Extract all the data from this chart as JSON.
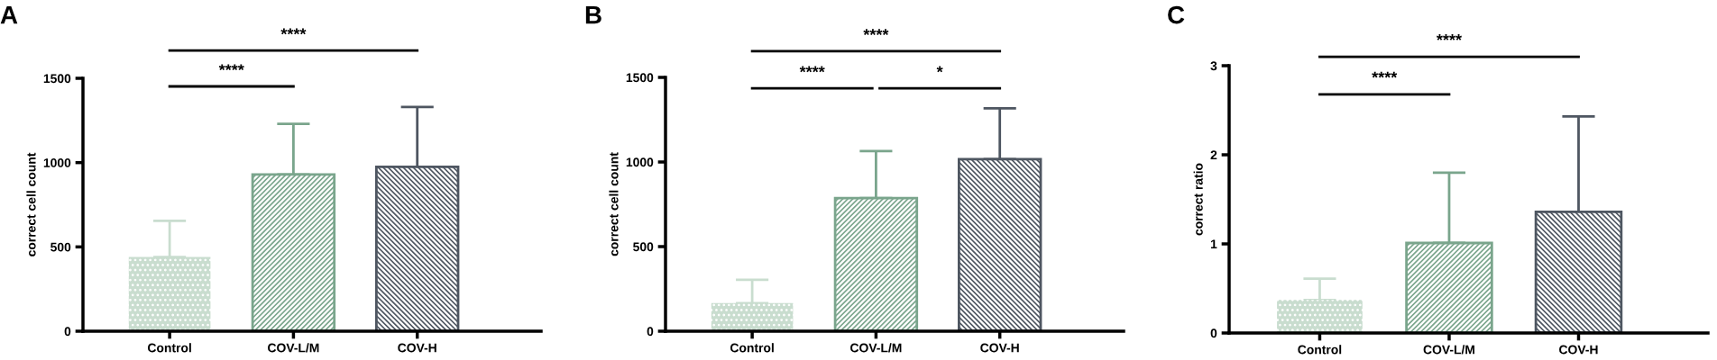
{
  "chart_data": [
    {
      "type": "bar",
      "title": "A",
      "ylabel": "correct cell count",
      "categories": [
        "Control",
        "COV-L/M",
        "COV-H"
      ],
      "values": [
        440,
        930,
        975
      ],
      "errors": [
        [
          440,
          655
        ],
        [
          930,
          1230
        ],
        [
          975,
          1330
        ]
      ],
      "colors": [
        "#c9ddcf",
        "#7aa58c",
        "#4e5661"
      ],
      "ylim": [
        0,
        1500
      ],
      "yticks": [
        0,
        500,
        1000,
        1500
      ],
      "grid": false,
      "annotations": [
        "****",
        "****"
      ]
    },
    {
      "type": "bar",
      "title": "B",
      "ylabel": "correct cell count",
      "categories": [
        "Control",
        "COV-L/M",
        "COV-H"
      ],
      "values": [
        166,
        787,
        1017
      ],
      "errors": [
        [
          166,
          304
        ],
        [
          787,
          1064
        ],
        [
          1017,
          1317
        ]
      ],
      "colors": [
        "#c9ddcf",
        "#7aa58c",
        "#4e5661"
      ],
      "ylim": [
        0,
        1500
      ],
      "yticks": [
        0,
        500,
        1000,
        1500
      ],
      "grid": false,
      "annotations": [
        "****",
        "****",
        "*"
      ]
    },
    {
      "type": "bar",
      "title": "C",
      "ylabel": "correct ratio",
      "categories": [
        "Control",
        "COV-L/M",
        "COV-H"
      ],
      "values": [
        0.37,
        1.01,
        1.36
      ],
      "errors": [
        [
          0.37,
          0.61
        ],
        [
          1.01,
          1.8
        ],
        [
          1.36,
          2.43
        ]
      ],
      "colors": [
        "#c9ddcf",
        "#7aa58c",
        "#4e5661"
      ],
      "ylim": [
        0,
        3
      ],
      "yticks": [
        0,
        1,
        2,
        3
      ],
      "grid": false,
      "annotations": [
        "****",
        "****"
      ]
    }
  ]
}
